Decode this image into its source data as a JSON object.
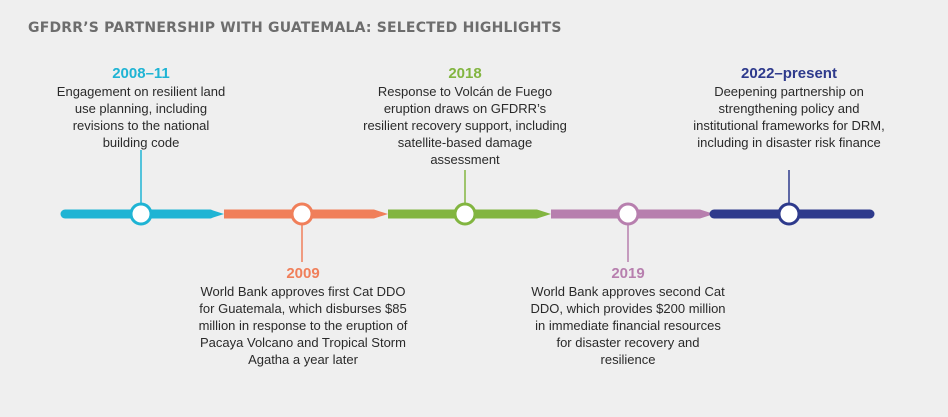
{
  "title": "GFDRR’S PARTNERSHIP WITH GUATEMALA: SELECTED HIGHLIGHTS",
  "colors": {
    "cyan": "#1fb4d4",
    "orange": "#f07f5a",
    "green": "#82b540",
    "purple": "#b77fae",
    "navy": "#2e3a8c"
  },
  "events": [
    {
      "year": "2008–11",
      "text": "Engagement on resilient land use planning, including revisions to the national building code"
    },
    {
      "year": "2009",
      "text": "World Bank approves first Cat DDO for Guatemala, which disburses $85 million in response to the eruption of Pacaya Volcano and Tropical Storm Agatha a year later"
    },
    {
      "year": "2018",
      "text": "Response to Volcán de Fuego eruption draws on GFDRR’s resilient recovery support, including satellite-based damage assessment"
    },
    {
      "year": "2019",
      "text": "World Bank approves second Cat DDO, which provides $200 million in immediate financial resources for disaster recovery and resilience"
    },
    {
      "year": "2022–present",
      "text": "Deepening partnership on strengthening policy and institutional frameworks for DRM, including in disaster risk finance"
    }
  ]
}
